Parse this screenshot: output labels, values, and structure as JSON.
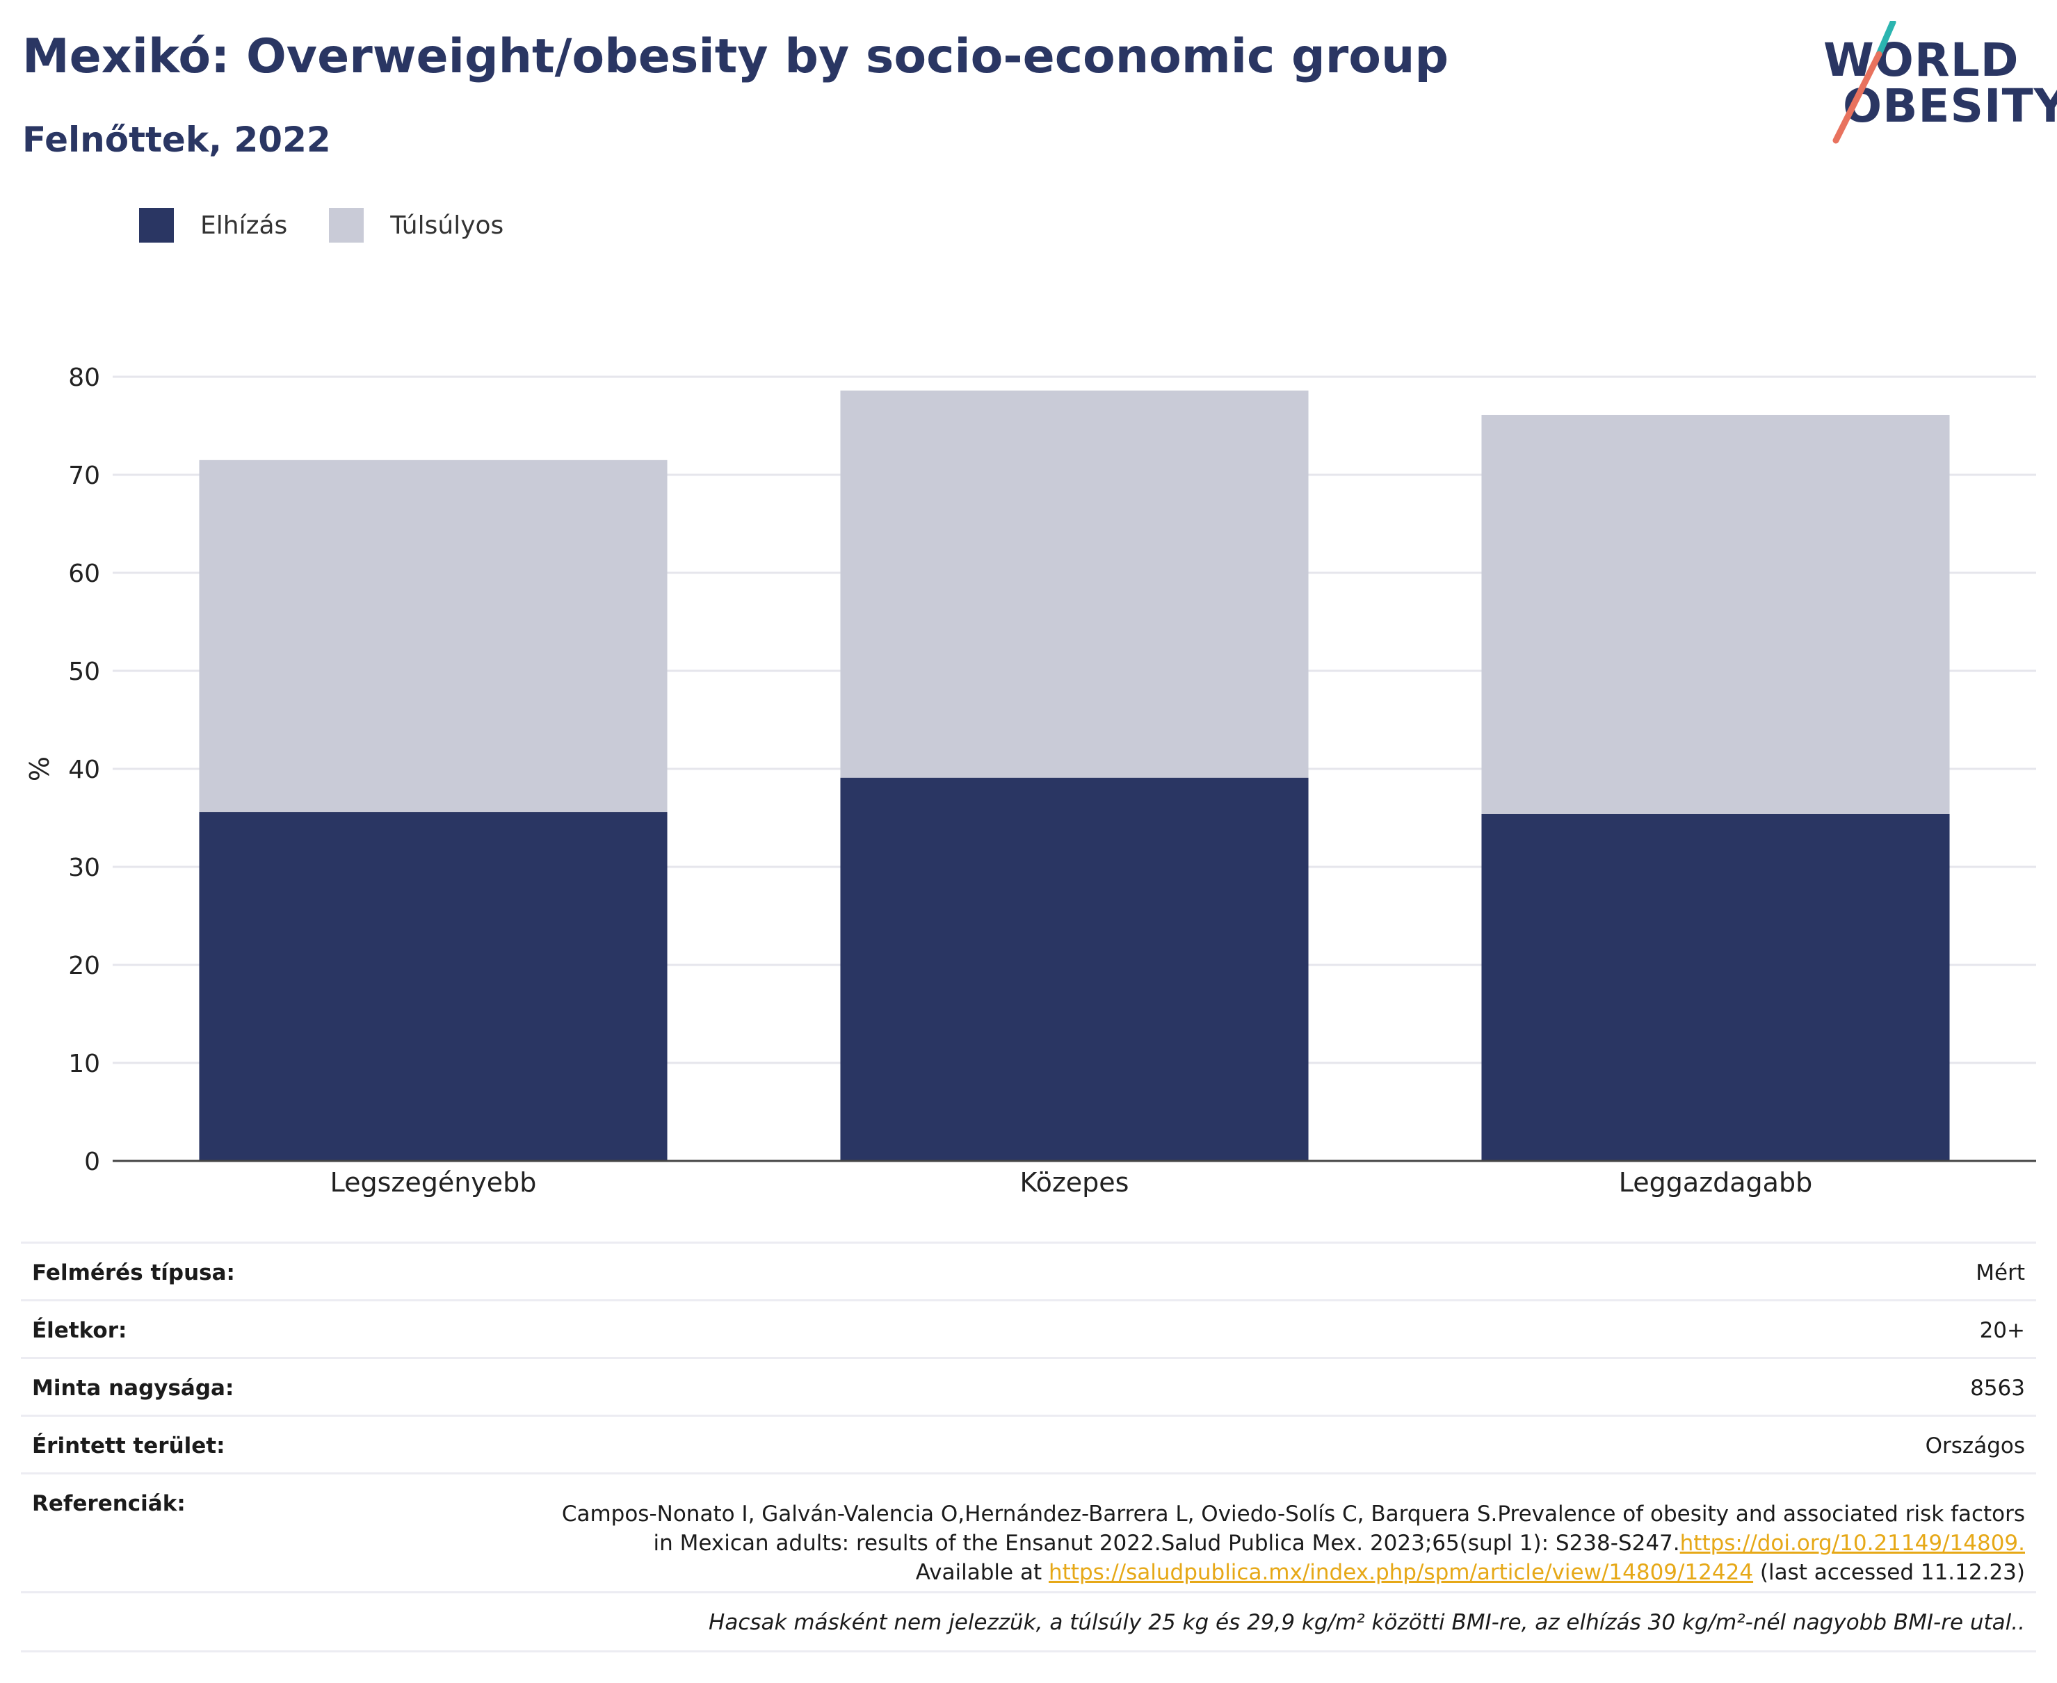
{
  "header": {
    "title": "Mexikó: Overweight/obesity by socio-economic group",
    "subtitle": "Felnőttek, 2022"
  },
  "logo": {
    "line1": "WORLD",
    "line2": "OBESITY"
  },
  "legend": [
    {
      "label": "Elhízás",
      "color": "#2a3663"
    },
    {
      "label": "Túlsúlyos",
      "color": "#c9cbd7"
    }
  ],
  "chart_data": {
    "type": "bar",
    "stacked": true,
    "categories": [
      "Legszegényebb",
      "Közepes",
      "Leggazdagabb"
    ],
    "series": [
      {
        "name": "Elhízás",
        "color": "#2a3663",
        "values": [
          35.6,
          39.1,
          35.4
        ]
      },
      {
        "name": "Túlsúlyos",
        "color": "#c9cbd7",
        "values": [
          35.9,
          39.5,
          40.7
        ]
      }
    ],
    "ylabel": "%",
    "ylim": [
      0,
      80
    ],
    "yticks": [
      0,
      10,
      20,
      30,
      40,
      50,
      60,
      70,
      80
    ],
    "grid": true,
    "legend_position": "top-left"
  },
  "meta": {
    "survey_type_label": "Felmérés típusa:",
    "survey_type_value": "Mért",
    "age_label": "Életkor:",
    "age_value": "20+",
    "sample_label": "Minta nagysága:",
    "sample_value": "8563",
    "area_label": "Érintett terület:",
    "area_value": "Országos",
    "ref_label": "Referenciák:",
    "ref_line1": "Campos-Nonato I, Galván-Valencia O,Hernández-Barrera L, Oviedo-Solís C, Barquera S.Prevalence of obesity and associated risk factors",
    "ref_line2_text": "in Mexican adults: results of the Ensanut 2022.Salud Publica Mex. 2023;65(supl 1): S238-S247.",
    "ref_line2_link": "https://doi.org/10.21149/14809.",
    "ref_line3_prefix": "Available at ",
    "ref_line3_link": "https://saludpublica.mx/index.php/spm/article/view/14809/12424",
    "ref_line3_suffix": " (last accessed 11.12.23)",
    "note": "Hacsak másként nem jelezzük, a túlsúly 25 kg és 29,9 kg/m² közötti BMI-re, az elhízás 30 kg/m²-nél nagyobb BMI-re utal.."
  }
}
